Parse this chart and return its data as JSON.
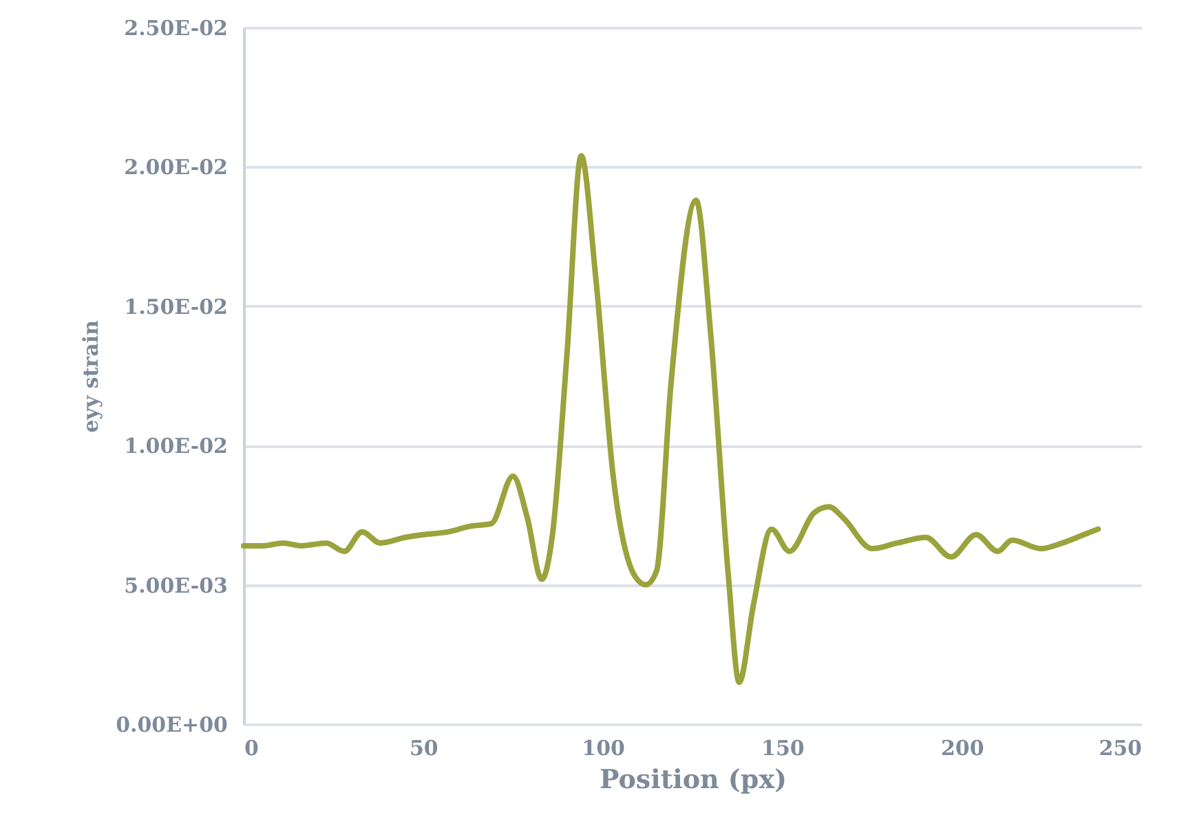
{
  "chart_data": {
    "type": "line",
    "xlabel": "Position (px)",
    "ylabel": "eyy strain",
    "x": [
      0,
      5.4,
      11,
      16,
      23,
      28,
      33,
      38,
      45,
      50,
      57,
      63,
      69,
      75,
      79,
      83,
      86,
      90,
      94,
      98,
      103,
      109,
      112,
      115,
      119,
      126,
      130,
      135,
      138,
      142,
      147,
      152,
      159,
      163,
      167,
      175,
      182,
      190,
      197,
      204,
      210,
      214,
      222,
      228,
      234,
      238
    ],
    "series": [
      {
        "color": "#9aa33c",
        "values": [
          0.0064,
          0.0064,
          0.0065,
          0.0064,
          0.0065,
          0.0062,
          0.0069,
          0.0065,
          0.0067,
          0.0068,
          0.0069,
          0.0071,
          0.0072,
          0.0089,
          0.0074,
          0.0052,
          0.0068,
          0.0132,
          0.0204,
          0.0161,
          0.0088,
          0.0053,
          0.005,
          0.0055,
          0.0122,
          0.0188,
          0.0141,
          0.0053,
          0.0015,
          0.0043,
          0.007,
          0.0062,
          0.0076,
          0.0078,
          0.0074,
          0.0063,
          0.0065,
          0.0067,
          0.006,
          0.0068,
          0.0062,
          0.0066,
          0.0063,
          0.0065,
          0.0068,
          0.007
        ]
      }
    ],
    "xlim": [
      0,
      250
    ],
    "xticks": [
      0,
      50,
      100,
      150,
      200,
      250
    ],
    "ylim": [
      0,
      0.025
    ],
    "yticks": [
      {
        "value": 0,
        "label": "0.00E+00"
      },
      {
        "value": 0.005,
        "label": "5.00E-03"
      },
      {
        "value": 0.01,
        "label": "1.00E-02"
      },
      {
        "value": 0.015,
        "label": "1.50E-02"
      },
      {
        "value": 0.02,
        "label": "2.00E-02"
      },
      {
        "value": 0.025,
        "label": "2.50E-02"
      }
    ],
    "grid": "y",
    "marker": "none",
    "line_style": "solid"
  }
}
